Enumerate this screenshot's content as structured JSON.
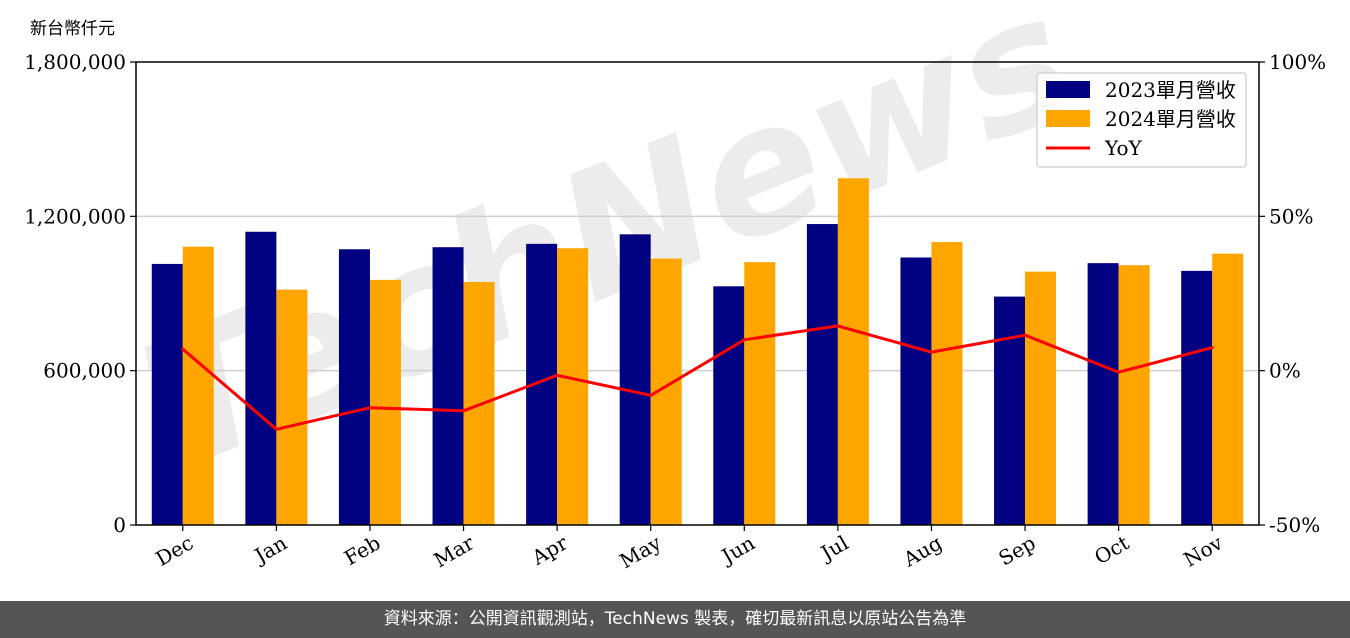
{
  "chart_data": {
    "type": "bar",
    "unit_label": "新台幣仟元",
    "categories": [
      "Dec",
      "Jan",
      "Feb",
      "Mar",
      "Apr",
      "May",
      "Jun",
      "Jul",
      "Aug",
      "Sep",
      "Oct",
      "Nov"
    ],
    "series": [
      {
        "name": "2023單月營收",
        "type": "bar",
        "color": "#000080",
        "values": [
          1015000,
          1140000,
          1072000,
          1080000,
          1093000,
          1130000,
          928000,
          1170000,
          1040000,
          888000,
          1018000,
          988000
        ]
      },
      {
        "name": "2024單月營收",
        "type": "bar",
        "color": "#FFA500",
        "values": [
          1082000,
          915000,
          953000,
          945000,
          1076000,
          1036000,
          1022000,
          1348000,
          1100000,
          985000,
          1010000,
          1055000
        ]
      },
      {
        "name": "YoY",
        "type": "line",
        "axis": "right",
        "color": "#FF0000",
        "values": [
          7,
          -19,
          -12,
          -13,
          -1.5,
          -8,
          10,
          14.5,
          6,
          11.5,
          -0.5,
          7.5
        ]
      }
    ],
    "ylim": [
      0,
      1800000
    ],
    "yticks": [
      "0",
      "600,000",
      "1,200,000",
      "1,800,000"
    ],
    "y2lim": [
      -50,
      100
    ],
    "y2ticks": [
      "-50%",
      "0%",
      "50%",
      "100%"
    ],
    "grid": true,
    "legend_position": "top-right"
  },
  "watermark": "TechNews",
  "footer": "資料來源：公開資訊觀測站，TechNews 製表，確切最新訊息以原站公告為準"
}
